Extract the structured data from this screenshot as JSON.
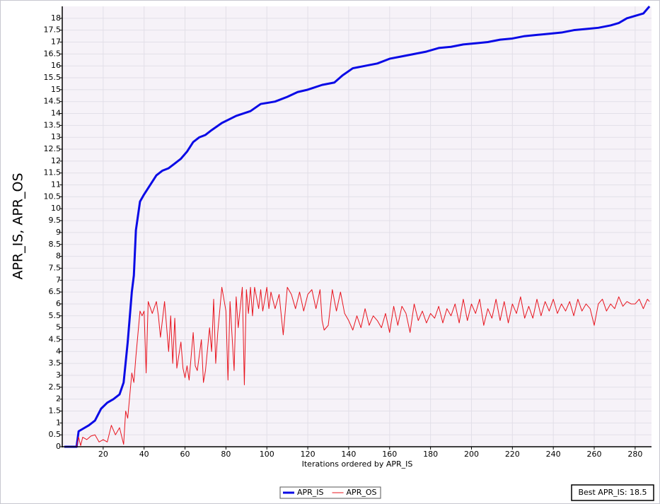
{
  "chart_data": {
    "type": "line",
    "xlabel": "Iterations ordered by APR_IS",
    "ylabel": "APR_IS, APR_OS",
    "annotation": "Best APR_IS: 18.5",
    "xlim": [
      0,
      288
    ],
    "ylim": [
      0,
      18.5
    ],
    "xticks": [
      20,
      40,
      60,
      80,
      100,
      120,
      140,
      160,
      180,
      200,
      220,
      240,
      260,
      280
    ],
    "yticks": [
      0,
      0.5,
      1,
      1.5,
      2,
      2.5,
      3,
      3.5,
      4,
      4.5,
      5,
      5.5,
      6,
      6.5,
      7,
      7.5,
      8,
      8.5,
      9,
      9.5,
      10,
      10.5,
      11,
      11.5,
      12,
      12.5,
      13,
      13.5,
      14,
      14.5,
      15,
      15.5,
      16,
      16.5,
      17,
      17.5,
      18
    ],
    "grid": true,
    "legend": "bottom",
    "series": [
      {
        "name": "APR_IS",
        "color": "#0a0ae6",
        "width": 3,
        "x": [
          1,
          7,
          8,
          10,
          13,
          16,
          19,
          22,
          25,
          28,
          30,
          32,
          34,
          35,
          36,
          38,
          40,
          43,
          46,
          49,
          52,
          55,
          58,
          61,
          64,
          67,
          70,
          73,
          78,
          85,
          92,
          97,
          104,
          110,
          115,
          120,
          127,
          133,
          137,
          142,
          148,
          154,
          160,
          166,
          172,
          178,
          184,
          190,
          196,
          202,
          208,
          214,
          220,
          226,
          232,
          238,
          244,
          250,
          256,
          262,
          268,
          272,
          276,
          280,
          284,
          286,
          287
        ],
        "values": [
          0,
          0,
          0.65,
          0.75,
          0.9,
          1.1,
          1.6,
          1.85,
          2.0,
          2.2,
          2.7,
          4.4,
          6.5,
          7.2,
          9.1,
          10.3,
          10.6,
          11.0,
          11.4,
          11.6,
          11.7,
          11.9,
          12.1,
          12.4,
          12.8,
          13.0,
          13.1,
          13.3,
          13.6,
          13.9,
          14.1,
          14.4,
          14.5,
          14.7,
          14.9,
          15.0,
          15.2,
          15.3,
          15.6,
          15.9,
          16.0,
          16.1,
          16.3,
          16.4,
          16.5,
          16.6,
          16.75,
          16.8,
          16.9,
          16.95,
          17.0,
          17.1,
          17.15,
          17.25,
          17.3,
          17.35,
          17.4,
          17.5,
          17.55,
          17.6,
          17.7,
          17.8,
          18.0,
          18.1,
          18.2,
          18.4,
          18.5
        ]
      },
      {
        "name": "APR_OS",
        "color": "#e8141e",
        "width": 1,
        "x": [
          1,
          4,
          7,
          8,
          9,
          10,
          12,
          14,
          16,
          18,
          20,
          22,
          24,
          26,
          28,
          30,
          31,
          32,
          34,
          35,
          36,
          38,
          39,
          40,
          41,
          42,
          44,
          46,
          47,
          48,
          50,
          52,
          53,
          54,
          55,
          56,
          58,
          59,
          60,
          61,
          62,
          64,
          65,
          66,
          68,
          69,
          70,
          72,
          73,
          74,
          75,
          76,
          78,
          79,
          80,
          81,
          82,
          84,
          85,
          86,
          88,
          89,
          90,
          91,
          92,
          93,
          94,
          96,
          97,
          98,
          100,
          101,
          102,
          104,
          106,
          108,
          110,
          112,
          114,
          116,
          118,
          120,
          122,
          124,
          126,
          127,
          128,
          130,
          132,
          134,
          136,
          138,
          140,
          142,
          144,
          146,
          148,
          150,
          152,
          154,
          156,
          158,
          160,
          162,
          164,
          166,
          168,
          170,
          172,
          174,
          176,
          178,
          180,
          182,
          184,
          186,
          188,
          190,
          192,
          194,
          196,
          198,
          200,
          202,
          204,
          206,
          208,
          210,
          212,
          214,
          216,
          218,
          220,
          222,
          224,
          226,
          228,
          230,
          232,
          234,
          236,
          238,
          240,
          242,
          244,
          246,
          248,
          250,
          252,
          254,
          256,
          258,
          260,
          262,
          264,
          266,
          268,
          270,
          272,
          274,
          276,
          278,
          280,
          282,
          284,
          286,
          287
        ],
        "values": [
          0,
          0,
          0,
          0.4,
          0.05,
          0.4,
          0.3,
          0.45,
          0.5,
          0.2,
          0.3,
          0.2,
          0.9,
          0.5,
          0.8,
          0.1,
          1.5,
          1.2,
          3.1,
          2.7,
          3.8,
          5.7,
          5.5,
          5.7,
          3.1,
          6.1,
          5.6,
          6.1,
          5.5,
          4.6,
          6.1,
          4.0,
          5.5,
          3.5,
          5.4,
          3.3,
          4.4,
          3.3,
          2.9,
          3.4,
          2.8,
          4.8,
          3.4,
          3.2,
          4.5,
          2.7,
          3.2,
          5.0,
          4.0,
          6.2,
          3.5,
          4.8,
          6.7,
          6.2,
          5.7,
          2.8,
          6.1,
          3.2,
          6.3,
          5.0,
          6.7,
          2.6,
          6.6,
          5.6,
          6.7,
          5.5,
          6.7,
          5.8,
          6.6,
          5.7,
          6.7,
          5.8,
          6.5,
          5.8,
          6.4,
          4.7,
          6.7,
          6.4,
          5.8,
          6.5,
          5.7,
          6.4,
          6.6,
          5.8,
          6.6,
          5.3,
          4.9,
          5.1,
          6.6,
          5.7,
          6.5,
          5.6,
          5.3,
          4.9,
          5.5,
          5.0,
          5.8,
          5.1,
          5.5,
          5.3,
          5.0,
          5.6,
          4.8,
          5.9,
          5.1,
          5.9,
          5.6,
          4.8,
          6.0,
          5.3,
          5.7,
          5.2,
          5.6,
          5.4,
          5.9,
          5.2,
          5.8,
          5.5,
          6.0,
          5.2,
          6.2,
          5.3,
          6.0,
          5.6,
          6.2,
          5.1,
          5.8,
          5.4,
          6.2,
          5.3,
          6.1,
          5.2,
          6.0,
          5.6,
          6.3,
          5.4,
          5.9,
          5.4,
          6.2,
          5.5,
          6.1,
          5.7,
          6.2,
          5.6,
          6.0,
          5.7,
          6.1,
          5.5,
          6.2,
          5.7,
          6.0,
          5.8,
          5.1,
          6.0,
          6.2,
          5.7,
          6.0,
          5.8,
          6.3,
          5.9,
          6.1,
          6.0,
          6.0,
          6.2,
          5.8,
          6.2,
          6.1
        ]
      }
    ]
  }
}
